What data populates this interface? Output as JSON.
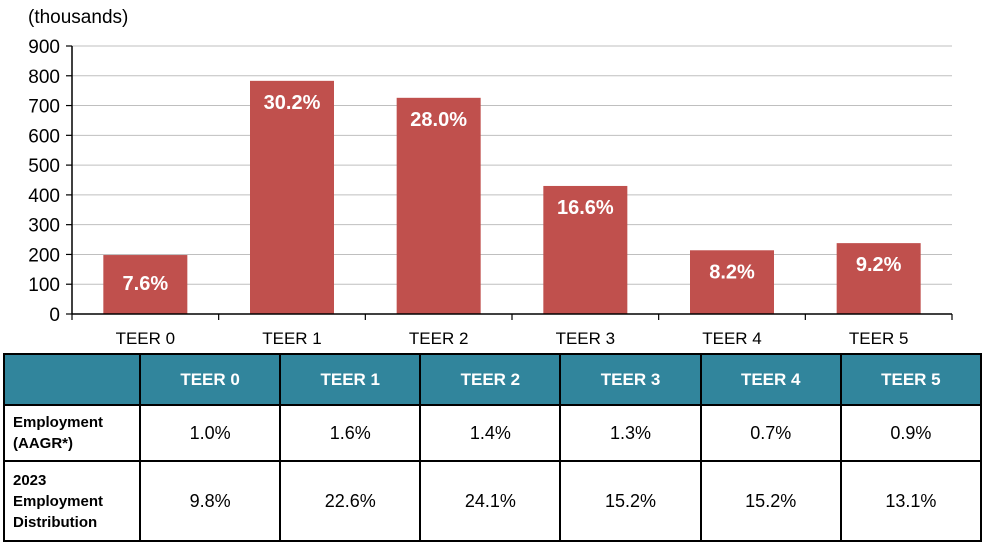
{
  "chart_data": {
    "type": "bar",
    "unit_label": "(thousands)",
    "categories": [
      "TEER 0",
      "TEER 1",
      "TEER 2",
      "TEER 3",
      "TEER 4",
      "TEER 5"
    ],
    "values": [
      198,
      783,
      726,
      430,
      214,
      238
    ],
    "data_labels": [
      "7.6%",
      "30.2%",
      "28.0%",
      "16.6%",
      "8.2%",
      "9.2%"
    ],
    "yticks": [
      "0",
      "100",
      "200",
      "300",
      "400",
      "500",
      "600",
      "700",
      "800",
      "900"
    ],
    "ylim": [
      0,
      900
    ],
    "grid": true,
    "bar_color": "#c0504d",
    "grid_color": "#bfbfbf"
  },
  "table": {
    "header_color": "#31859c",
    "columns": [
      "",
      "TEER 0",
      "TEER 1",
      "TEER 2",
      "TEER 3",
      "TEER 4",
      "TEER 5"
    ],
    "rows": [
      {
        "label_lines": [
          "Employment",
          "(AAGR*)"
        ],
        "values": [
          "1.0%",
          "1.6%",
          "1.4%",
          "1.3%",
          "0.7%",
          "0.9%"
        ]
      },
      {
        "label_lines": [
          "2023",
          "Employment",
          "Distribution"
        ],
        "values": [
          "9.8%",
          "22.6%",
          "24.1%",
          "15.2%",
          "15.2%",
          "13.1%"
        ]
      }
    ]
  }
}
